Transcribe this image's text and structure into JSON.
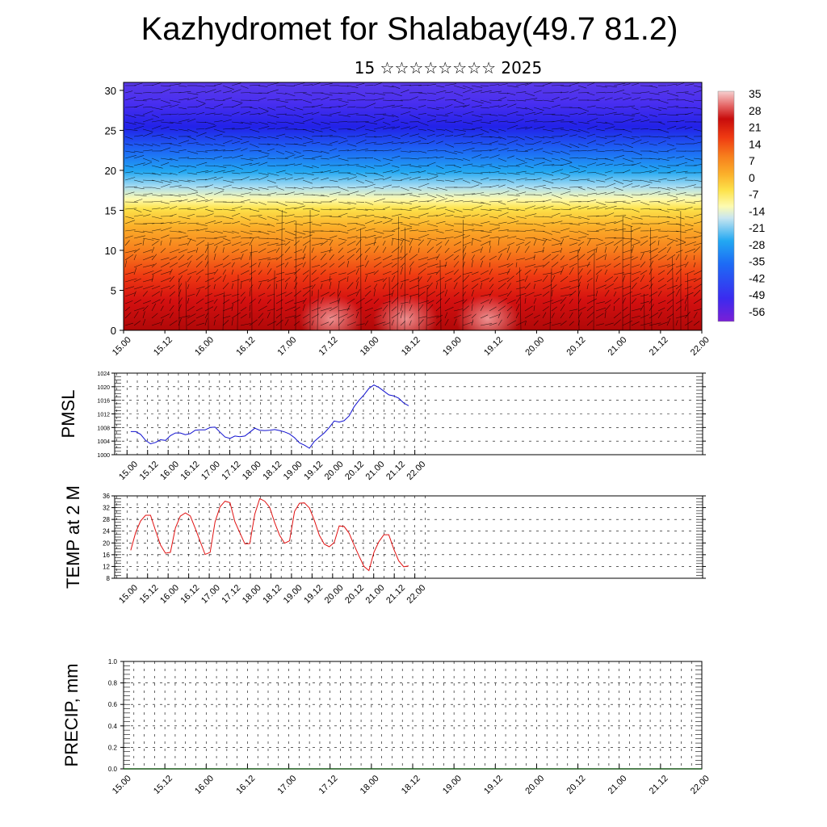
{
  "title": "Kazhydromet for Shalabay(49.7 81.2)",
  "subtitle": "15 ☆☆☆☆☆☆☆☆ 2025",
  "x_ticks": [
    "15.00",
    "15.12",
    "16.00",
    "16.12",
    "17.00",
    "17.12",
    "18.00",
    "18.12",
    "19.00",
    "19.12",
    "20.00",
    "20.12",
    "21.00",
    "21.12",
    "22.00"
  ],
  "chart_data": [
    {
      "type": "heatmap",
      "y_ticks": [
        "0",
        "5",
        "10",
        "15",
        "20",
        "25",
        "30"
      ],
      "ylim": [
        0,
        31
      ],
      "colorbar_labels": [
        "35",
        "28",
        "21",
        "14",
        "7",
        "0",
        "-7",
        "-14",
        "-21",
        "-28",
        "-35",
        "-42",
        "-49",
        "-56"
      ],
      "colors": [
        "#7a1fd6",
        "#3b2bef",
        "#1d6bf5",
        "#22a8f2",
        "#a7dcf2",
        "#fdfbb0",
        "#fde24a",
        "#fbb02a",
        "#f77d1c",
        "#ef3a12",
        "#d81010",
        "#b50c0c",
        "#e66a6a",
        "#f3b8b8"
      ]
    },
    {
      "type": "line",
      "ylabel": "PMSL",
      "ylim": [
        1000,
        1024
      ],
      "y_ticks": [
        "1000",
        "1004",
        "1008",
        "1012",
        "1016",
        "1020",
        "1024"
      ],
      "color": "#1010d0",
      "values": [
        1006.8,
        1006.8,
        1006.0,
        1004.2,
        1003.2,
        1003.6,
        1004.4,
        1004.2,
        1005.6,
        1006.4,
        1006.4,
        1005.9,
        1006.2,
        1007.2,
        1007.3,
        1007.3,
        1008.0,
        1008.1,
        1006.6,
        1005.2,
        1004.8,
        1005.5,
        1005.3,
        1005.5,
        1006.6,
        1007.8,
        1007.2,
        1007.1,
        1007.2,
        1007.4,
        1007.1,
        1006.7,
        1006.1,
        1005.0,
        1003.5,
        1002.8,
        1001.9,
        1003.9,
        1005.2,
        1006.4,
        1008.0,
        1009.9,
        1009.6,
        1010.0,
        1011.4,
        1014.1,
        1016.0,
        1017.6,
        1019.5,
        1020.5,
        1019.8,
        1018.7,
        1017.6,
        1017.3,
        1016.6,
        1015.2,
        1014.4
      ],
      "x_start": 0.09,
      "x_end": 6.85
    },
    {
      "type": "line",
      "ylabel": "TEMP at 2 M",
      "ylim": [
        8,
        36
      ],
      "y_ticks": [
        "8",
        "12",
        "16",
        "20",
        "24",
        "28",
        "32",
        "36"
      ],
      "color": "#e01010",
      "values": [
        17.5,
        23.6,
        27.5,
        29.4,
        29.4,
        24.2,
        19.3,
        16.5,
        16.8,
        25.1,
        29.1,
        30.2,
        29.2,
        25.0,
        20.5,
        16.1,
        16.8,
        27.2,
        32.3,
        34.2,
        33.7,
        27.2,
        23.4,
        19.7,
        19.8,
        29.8,
        35.1,
        34.2,
        32.1,
        26.9,
        22.6,
        19.9,
        20.7,
        30.7,
        33.5,
        33.6,
        31.9,
        27.7,
        22.6,
        19.6,
        18.7,
        20.1,
        25.8,
        25.6,
        23.3,
        19.3,
        15.6,
        12.0,
        10.6,
        16.8,
        20.4,
        22.8,
        22.8,
        17.9,
        13.9,
        11.9,
        12.2
      ],
      "x_start": 0.09,
      "x_end": 6.85
    },
    {
      "type": "line",
      "ylabel": "PRECIP, mm",
      "ylim": [
        0,
        1
      ],
      "y_ticks": [
        "0.0",
        "0.2",
        "0.4",
        "0.6",
        "0.8",
        "1.0"
      ],
      "color": "#1a5a1a",
      "values": [
        0,
        0
      ]
    }
  ]
}
